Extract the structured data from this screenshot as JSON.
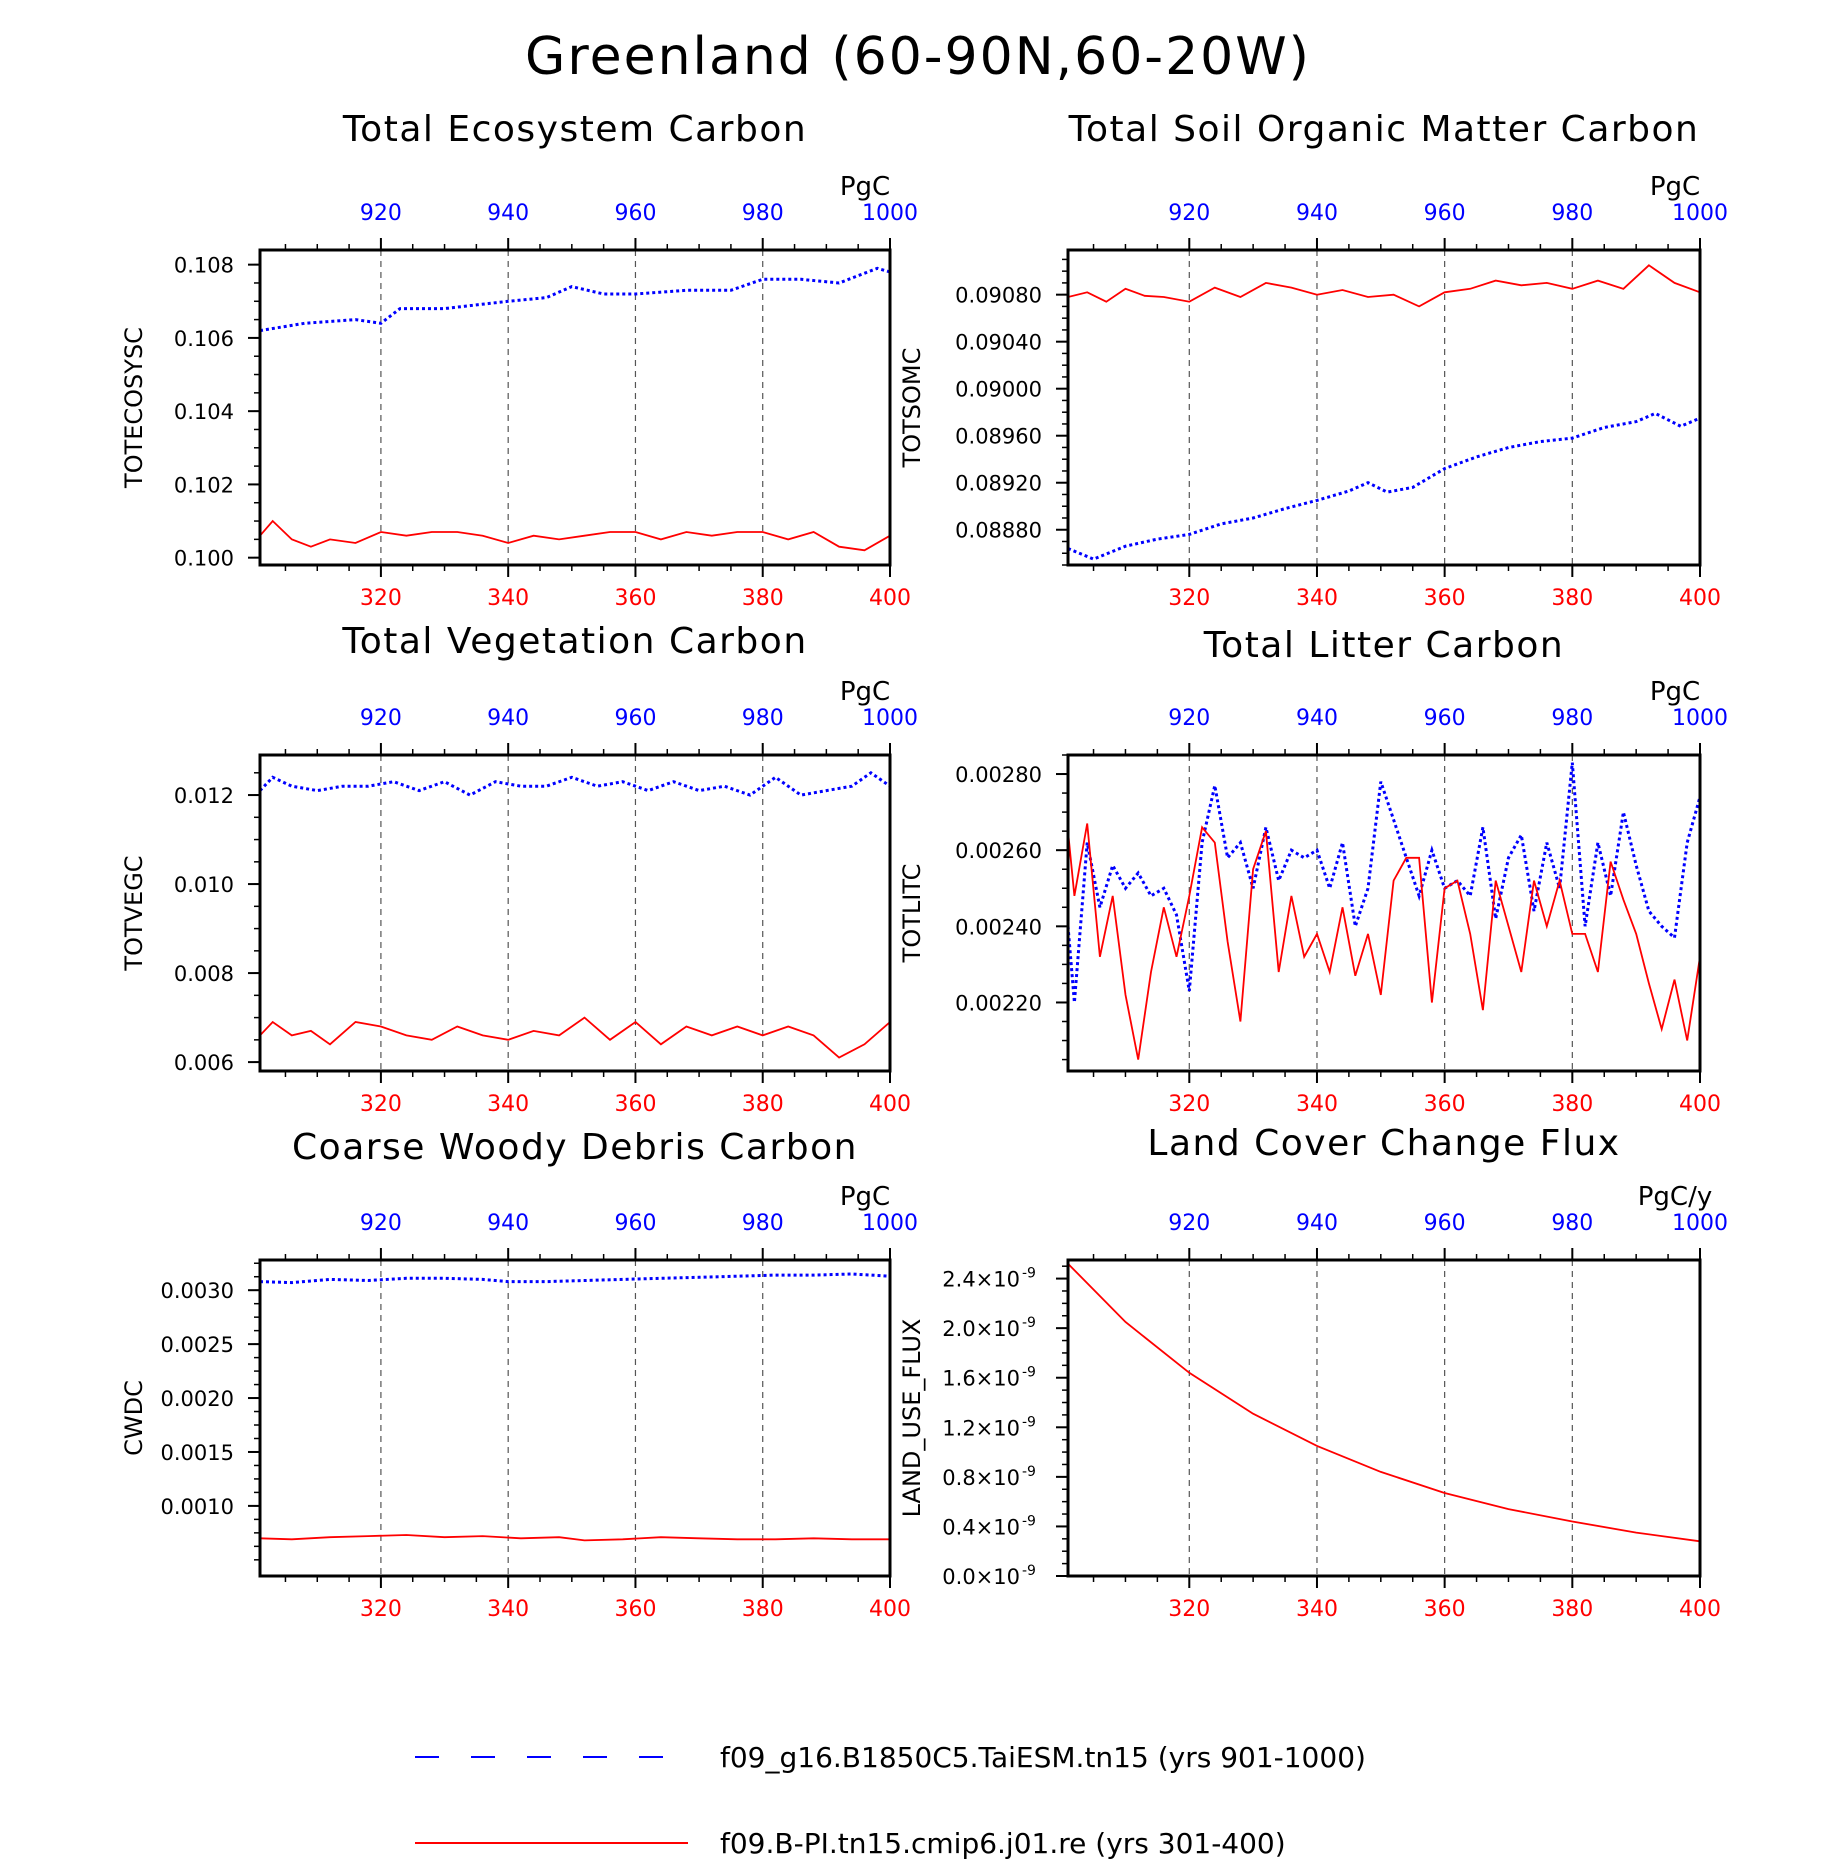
{
  "figure": {
    "title": "Greenland (60-90N,60-20W)"
  },
  "colors": {
    "run_a": "#0000ff",
    "run_b": "#ff0000",
    "axis": "#000000",
    "grid": "#555555"
  },
  "legend": [
    {
      "label": "f09_g16.B1850C5.TaiESM.tn15 (yrs 901-1000)",
      "color": "#0000ff",
      "style": "dashed"
    },
    {
      "label": "f09.B-PI.tn15.cmip6.j01.re (yrs 301-400)",
      "color": "#ff0000",
      "style": "solid"
    }
  ],
  "chart_data": [
    {
      "type": "line",
      "title": "Total Ecosystem Carbon",
      "ylabel": "TOTECOSYSC",
      "units": "PgC",
      "x_bottom": {
        "range": [
          301,
          400
        ],
        "ticks": [
          "320",
          "340",
          "360",
          "380",
          "400"
        ]
      },
      "x_top": {
        "range": [
          901,
          1000
        ],
        "ticks": [
          "920",
          "940",
          "960",
          "980",
          "1000"
        ]
      },
      "ylim": [
        0.0998,
        0.1084
      ],
      "yticks": [
        0.1,
        0.102,
        0.104,
        0.106,
        0.108
      ],
      "ytick_labels": [
        "0.100",
        "0.102",
        "0.104",
        "0.106",
        "0.108"
      ],
      "series": [
        {
          "name": "f09_g16.B1850C5.TaiESM.tn15 (yrs 901-1000)",
          "axis": "top",
          "x": [
            901,
            908,
            916,
            920,
            923,
            930,
            935,
            940,
            946,
            950,
            955,
            960,
            968,
            975,
            980,
            986,
            992,
            998,
            1000
          ],
          "values": [
            0.1062,
            0.1064,
            0.1065,
            0.1064,
            0.1068,
            0.1068,
            0.1069,
            0.107,
            0.1071,
            0.1074,
            0.1072,
            0.1072,
            0.1073,
            0.1073,
            0.1076,
            0.1076,
            0.1075,
            0.1079,
            0.1078
          ]
        },
        {
          "name": "f09.B-PI.tn15.cmip6.j01.re (yrs 301-400)",
          "axis": "bottom",
          "x": [
            301,
            303,
            306,
            309,
            312,
            316,
            320,
            324,
            328,
            332,
            336,
            340,
            344,
            348,
            352,
            356,
            360,
            364,
            368,
            372,
            376,
            380,
            384,
            388,
            392,
            396,
            400
          ],
          "values": [
            0.1006,
            0.101,
            0.1005,
            0.1003,
            0.1005,
            0.1004,
            0.1007,
            0.1006,
            0.1007,
            0.1007,
            0.1006,
            0.1004,
            0.1006,
            0.1005,
            0.1006,
            0.1007,
            0.1007,
            0.1005,
            0.1007,
            0.1006,
            0.1007,
            0.1007,
            0.1005,
            0.1007,
            0.1003,
            0.1002,
            0.1006
          ]
        }
      ]
    },
    {
      "type": "line",
      "title": "Total Soil Organic Matter Carbon",
      "ylabel": "TOTSOMC",
      "units": "PgC",
      "x_bottom": {
        "range": [
          301,
          400
        ],
        "ticks": [
          "320",
          "340",
          "360",
          "380",
          "400"
        ]
      },
      "x_top": {
        "range": [
          901,
          1000
        ],
        "ticks": [
          "920",
          "940",
          "960",
          "980",
          "1000"
        ]
      },
      "ylim": [
        0.0885,
        0.09118
      ],
      "yticks": [
        0.0888,
        0.0892,
        0.0896,
        0.09,
        0.0904,
        0.0908
      ],
      "ytick_labels": [
        "0.08880",
        "0.08920",
        "0.08960",
        "0.09000",
        "0.09040",
        "0.09080"
      ],
      "series": [
        {
          "name": "f09_g16.B1850C5.TaiESM.tn15 (yrs 901-1000)",
          "axis": "top",
          "x": [
            901,
            905,
            910,
            915,
            920,
            925,
            930,
            935,
            940,
            945,
            948,
            951,
            955,
            960,
            965,
            970,
            975,
            980,
            985,
            990,
            993,
            997,
            1000
          ],
          "values": [
            0.08864,
            0.08855,
            0.08866,
            0.08872,
            0.08876,
            0.08885,
            0.0889,
            0.08898,
            0.08905,
            0.08913,
            0.0892,
            0.08912,
            0.08916,
            0.08932,
            0.08942,
            0.0895,
            0.08955,
            0.08958,
            0.08967,
            0.08972,
            0.08979,
            0.08968,
            0.08975
          ]
        },
        {
          "name": "f09.B-PI.tn15.cmip6.j01.re (yrs 301-400)",
          "axis": "bottom",
          "x": [
            301,
            304,
            307,
            310,
            313,
            316,
            320,
            324,
            328,
            332,
            336,
            340,
            344,
            348,
            352,
            356,
            360,
            364,
            368,
            372,
            376,
            380,
            384,
            388,
            392,
            396,
            400
          ],
          "values": [
            0.09078,
            0.09082,
            0.09074,
            0.09085,
            0.09079,
            0.09078,
            0.09074,
            0.09086,
            0.09078,
            0.0909,
            0.09086,
            0.0908,
            0.09084,
            0.09078,
            0.0908,
            0.0907,
            0.09082,
            0.09085,
            0.09092,
            0.09088,
            0.0909,
            0.09085,
            0.09092,
            0.09085,
            0.09105,
            0.0909,
            0.09082
          ]
        }
      ]
    },
    {
      "type": "line",
      "title": "Total Vegetation Carbon",
      "ylabel": "TOTVEGC",
      "units": "PgC",
      "x_bottom": {
        "range": [
          301,
          400
        ],
        "ticks": [
          "320",
          "340",
          "360",
          "380",
          "400"
        ]
      },
      "x_top": {
        "range": [
          901,
          1000
        ],
        "ticks": [
          "920",
          "940",
          "960",
          "980",
          "1000"
        ]
      },
      "ylim": [
        0.0058,
        0.0129
      ],
      "yticks": [
        0.006,
        0.008,
        0.01,
        0.012
      ],
      "ytick_labels": [
        "0.006",
        "0.008",
        "0.010",
        "0.012"
      ],
      "series": [
        {
          "name": "f09_g16.B1850C5.TaiESM.tn15 (yrs 901-1000)",
          "axis": "top",
          "x": [
            901,
            903,
            906,
            910,
            914,
            918,
            922,
            926,
            930,
            934,
            938,
            942,
            946,
            950,
            954,
            958,
            962,
            966,
            970,
            974,
            978,
            982,
            986,
            990,
            994,
            997,
            1000
          ],
          "values": [
            0.0121,
            0.0124,
            0.0122,
            0.0121,
            0.0122,
            0.0122,
            0.0123,
            0.0121,
            0.0123,
            0.012,
            0.0123,
            0.0122,
            0.0122,
            0.0124,
            0.0122,
            0.0123,
            0.0121,
            0.0123,
            0.0121,
            0.0122,
            0.012,
            0.0124,
            0.012,
            0.0121,
            0.0122,
            0.0125,
            0.0122
          ]
        },
        {
          "name": "f09.B-PI.tn15.cmip6.j01.re (yrs 301-400)",
          "axis": "bottom",
          "x": [
            301,
            303,
            306,
            309,
            312,
            316,
            320,
            324,
            328,
            332,
            336,
            340,
            344,
            348,
            352,
            356,
            360,
            364,
            368,
            372,
            376,
            380,
            384,
            388,
            392,
            396,
            400
          ],
          "values": [
            0.0066,
            0.0069,
            0.0066,
            0.0067,
            0.0064,
            0.0069,
            0.0068,
            0.0066,
            0.0065,
            0.0068,
            0.0066,
            0.0065,
            0.0067,
            0.0066,
            0.007,
            0.0065,
            0.0069,
            0.0064,
            0.0068,
            0.0066,
            0.0068,
            0.0066,
            0.0068,
            0.0066,
            0.0061,
            0.0064,
            0.0069
          ]
        }
      ]
    },
    {
      "type": "line",
      "title": "Total Litter Carbon",
      "ylabel": "TOTLITC",
      "units": "PgC",
      "x_bottom": {
        "range": [
          301,
          400
        ],
        "ticks": [
          "320",
          "340",
          "360",
          "380",
          "400"
        ]
      },
      "x_top": {
        "range": [
          901,
          1000
        ],
        "ticks": [
          "920",
          "940",
          "960",
          "980",
          "1000"
        ]
      },
      "ylim": [
        0.00202,
        0.00285
      ],
      "yticks": [
        0.0022,
        0.0024,
        0.0026,
        0.0028
      ],
      "ytick_labels": [
        "0.00220",
        "0.00240",
        "0.00260",
        "0.00280"
      ],
      "series": [
        {
          "name": "f09_g16.B1850C5.TaiESM.tn15 (yrs 901-1000)",
          "axis": "top",
          "x": [
            901,
            902,
            904,
            906,
            908,
            910,
            912,
            914,
            916,
            918,
            920,
            922,
            924,
            926,
            928,
            930,
            932,
            934,
            936,
            938,
            940,
            942,
            944,
            946,
            948,
            950,
            952,
            954,
            956,
            958,
            960,
            962,
            964,
            966,
            968,
            970,
            972,
            974,
            976,
            978,
            980,
            982,
            984,
            986,
            988,
            990,
            992,
            994,
            996,
            998,
            1000
          ],
          "values": [
            0.0024,
            0.0022,
            0.00262,
            0.00245,
            0.00256,
            0.0025,
            0.00254,
            0.00248,
            0.0025,
            0.00243,
            0.00223,
            0.00262,
            0.00277,
            0.00258,
            0.00262,
            0.0025,
            0.00266,
            0.00252,
            0.0026,
            0.00258,
            0.0026,
            0.0025,
            0.00262,
            0.0024,
            0.0025,
            0.00278,
            0.00268,
            0.00258,
            0.00248,
            0.0026,
            0.0025,
            0.00252,
            0.00248,
            0.00266,
            0.00242,
            0.00258,
            0.00264,
            0.00244,
            0.00262,
            0.0025,
            0.00283,
            0.0024,
            0.00262,
            0.00248,
            0.0027,
            0.00256,
            0.00244,
            0.0024,
            0.00237,
            0.00262,
            0.00274
          ]
        },
        {
          "name": "f09.B-PI.tn15.cmip6.j01.re (yrs 301-400)",
          "axis": "bottom",
          "x": [
            301,
            302,
            304,
            306,
            308,
            310,
            312,
            314,
            316,
            318,
            320,
            322,
            324,
            326,
            328,
            330,
            332,
            334,
            336,
            338,
            340,
            342,
            344,
            346,
            348,
            350,
            352,
            354,
            356,
            358,
            360,
            362,
            364,
            366,
            368,
            370,
            372,
            374,
            376,
            378,
            380,
            382,
            384,
            386,
            388,
            390,
            392,
            394,
            396,
            398,
            400
          ],
          "values": [
            0.00265,
            0.00248,
            0.00267,
            0.00232,
            0.00248,
            0.00222,
            0.00205,
            0.00228,
            0.00245,
            0.00232,
            0.00248,
            0.00266,
            0.00262,
            0.00236,
            0.00215,
            0.00255,
            0.00265,
            0.00228,
            0.00248,
            0.00232,
            0.00238,
            0.00228,
            0.00245,
            0.00227,
            0.00238,
            0.00222,
            0.00252,
            0.00258,
            0.00258,
            0.0022,
            0.0025,
            0.00252,
            0.00238,
            0.00218,
            0.00252,
            0.0024,
            0.00228,
            0.00252,
            0.0024,
            0.00252,
            0.00238,
            0.00238,
            0.00228,
            0.00257,
            0.00247,
            0.00238,
            0.00225,
            0.00213,
            0.00226,
            0.0021,
            0.00232
          ]
        }
      ]
    },
    {
      "type": "line",
      "title": "Coarse Woody Debris Carbon",
      "ylabel": "CWDC",
      "units": "PgC",
      "x_bottom": {
        "range": [
          301,
          400
        ],
        "ticks": [
          "320",
          "340",
          "360",
          "380",
          "400"
        ]
      },
      "x_top": {
        "range": [
          901,
          1000
        ],
        "ticks": [
          "920",
          "940",
          "960",
          "980",
          "1000"
        ]
      },
      "ylim": [
        0.00035,
        0.00328
      ],
      "yticks": [
        0.001,
        0.0015,
        0.002,
        0.0025,
        0.003
      ],
      "ytick_labels": [
        "0.0010",
        "0.0015",
        "0.0020",
        "0.0025",
        "0.0030"
      ],
      "series": [
        {
          "name": "f09_g16.B1850C5.TaiESM.tn15 (yrs 901-1000)",
          "axis": "top",
          "x": [
            901,
            906,
            912,
            918,
            924,
            930,
            936,
            940,
            946,
            952,
            958,
            964,
            970,
            976,
            982,
            988,
            994,
            1000
          ],
          "values": [
            0.00308,
            0.00307,
            0.0031,
            0.00309,
            0.00311,
            0.00311,
            0.0031,
            0.00308,
            0.00308,
            0.00309,
            0.0031,
            0.00311,
            0.00312,
            0.00313,
            0.00314,
            0.00314,
            0.00315,
            0.00313
          ]
        },
        {
          "name": "f09.B-PI.tn15.cmip6.j01.re (yrs 301-400)",
          "axis": "bottom",
          "x": [
            301,
            306,
            312,
            318,
            324,
            330,
            336,
            342,
            348,
            352,
            358,
            364,
            370,
            376,
            382,
            388,
            394,
            400
          ],
          "values": [
            0.0007,
            0.00069,
            0.00071,
            0.00072,
            0.00073,
            0.00071,
            0.00072,
            0.0007,
            0.00071,
            0.00068,
            0.00069,
            0.00071,
            0.0007,
            0.00069,
            0.00069,
            0.0007,
            0.00069,
            0.00069
          ]
        }
      ]
    },
    {
      "type": "line",
      "title": "Land Cover Change Flux",
      "ylabel": "LAND_USE_FLUX",
      "units": "PgC/y",
      "x_bottom": {
        "range": [
          301,
          400
        ],
        "ticks": [
          "320",
          "340",
          "360",
          "380",
          "400"
        ]
      },
      "x_top": {
        "range": [
          901,
          1000
        ],
        "ticks": [
          "920",
          "940",
          "960",
          "980",
          "1000"
        ]
      },
      "ylim": [
        0.0,
        2.55e-09
      ],
      "yticks": [
        0.0,
        4e-10,
        8e-10,
        1.2e-09,
        1.6e-09,
        2e-09,
        2.4e-09
      ],
      "ytick_mantissas": [
        "0.0",
        "0.4",
        "0.8",
        "1.2",
        "1.6",
        "2.0",
        "2.4"
      ],
      "ytick_suffix": "×10",
      "ytick_exponent": "-9",
      "series": [
        {
          "name": "f09.B-PI.tn15.cmip6.j01.re (yrs 301-400)",
          "axis": "bottom",
          "x": [
            301,
            310,
            320,
            330,
            340,
            350,
            360,
            370,
            380,
            390,
            400
          ],
          "values": [
            2.52e-09,
            2.05e-09,
            1.64e-09,
            1.31e-09,
            1.05e-09,
            8.4e-10,
            6.7e-10,
            5.4e-10,
            4.4e-10,
            3.5e-10,
            2.8e-10
          ]
        }
      ]
    }
  ]
}
